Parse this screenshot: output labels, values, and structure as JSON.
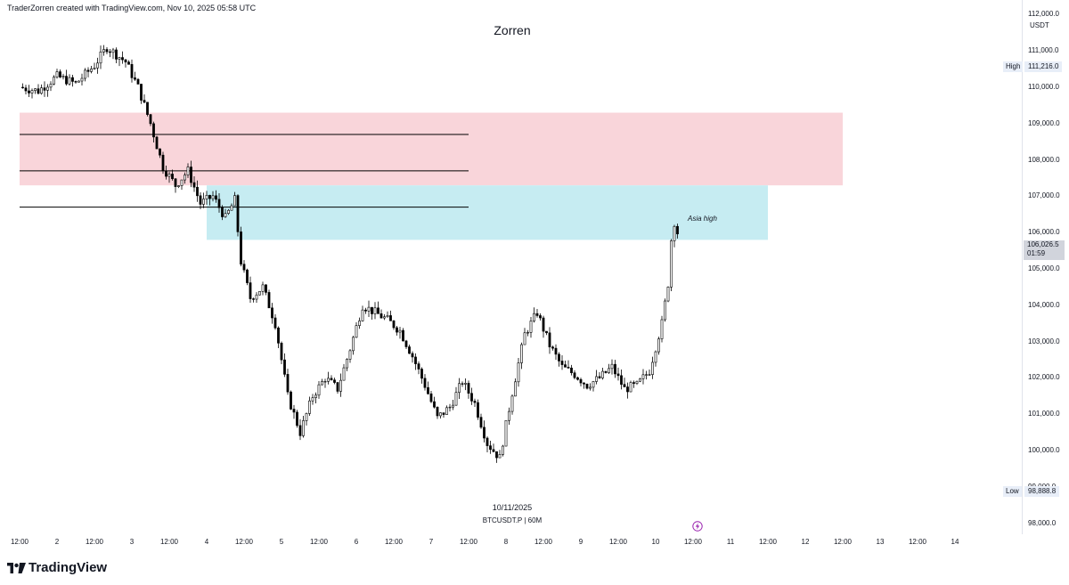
{
  "header": {
    "attribution": "TraderZorren created with TradingView.com, Nov 10, 2025 05:58 UTC",
    "title": "Zorren"
  },
  "footer": {
    "date_label": "10/11/2025",
    "symbol_label": "BTCUSDT.P | 60M",
    "logo_text": "TradingView",
    "logo_icon": "tradingview-logo-icon",
    "flash_icon": "lightning-icon"
  },
  "price_axis": {
    "currency": "USDT",
    "high_label": "High",
    "high_value": "111,216.0",
    "low_label": "Low",
    "low_value": "98,888.8",
    "last_price": "106,026.5",
    "countdown": "01:59"
  },
  "annotation": "Asia high",
  "chart_data": {
    "type": "candlestick",
    "symbol": "BTCUSDT.P",
    "timeframe": "60M",
    "ylim": [
      97700,
      112400
    ],
    "yticks": [
      98000,
      99000,
      100000,
      101000,
      102000,
      103000,
      104000,
      105000,
      106000,
      107000,
      108000,
      109000,
      110000,
      111000,
      112000
    ],
    "ytick_labels": [
      "98,000.0",
      "99,000.0",
      "100,000.0",
      "101,000.0",
      "102,000.0",
      "103,000.0",
      "104,000.0",
      "105,000.0",
      "106,000.0",
      "107,000.0",
      "108,000.0",
      "109,000.0",
      "110,000.0",
      "111,000.0",
      "112,000.0"
    ],
    "xlim": [
      "2025-11-01T12:00",
      "2025-11-14T12:00"
    ],
    "xticks": [
      {
        "t": "2025-11-01T12:00",
        "label": "12:00"
      },
      {
        "t": "2025-11-02T00:00",
        "label": "2"
      },
      {
        "t": "2025-11-02T12:00",
        "label": "12:00"
      },
      {
        "t": "2025-11-03T00:00",
        "label": "3"
      },
      {
        "t": "2025-11-03T12:00",
        "label": "12:00"
      },
      {
        "t": "2025-11-04T00:00",
        "label": "4"
      },
      {
        "t": "2025-11-04T12:00",
        "label": "12:00"
      },
      {
        "t": "2025-11-05T00:00",
        "label": "5"
      },
      {
        "t": "2025-11-05T12:00",
        "label": "12:00"
      },
      {
        "t": "2025-11-06T00:00",
        "label": "6"
      },
      {
        "t": "2025-11-06T12:00",
        "label": "12:00"
      },
      {
        "t": "2025-11-07T00:00",
        "label": "7"
      },
      {
        "t": "2025-11-07T12:00",
        "label": "12:00"
      },
      {
        "t": "2025-11-08T00:00",
        "label": "8"
      },
      {
        "t": "2025-11-08T12:00",
        "label": "12:00"
      },
      {
        "t": "2025-11-09T00:00",
        "label": "9"
      },
      {
        "t": "2025-11-09T12:00",
        "label": "12:00"
      },
      {
        "t": "2025-11-10T00:00",
        "label": "10"
      },
      {
        "t": "2025-11-10T12:00",
        "label": "12:00"
      },
      {
        "t": "2025-11-11T00:00",
        "label": "11"
      },
      {
        "t": "2025-11-11T12:00",
        "label": "12:00"
      },
      {
        "t": "2025-11-12T00:00",
        "label": "12"
      },
      {
        "t": "2025-11-12T12:00",
        "label": "12:00"
      },
      {
        "t": "2025-11-13T00:00",
        "label": "13"
      },
      {
        "t": "2025-11-13T12:00",
        "label": "12:00"
      },
      {
        "t": "2025-11-14T00:00",
        "label": "14"
      }
    ],
    "path": [
      [
        "2025-11-01T12:00",
        110000
      ],
      [
        "2025-11-01T18:00",
        109900
      ],
      [
        "2025-11-02T00:00",
        110300
      ],
      [
        "2025-11-02T06:00",
        110100
      ],
      [
        "2025-11-02T12:00",
        110600
      ],
      [
        "2025-11-02T16:00",
        111100
      ],
      [
        "2025-11-02T22:00",
        110700
      ],
      [
        "2025-11-03T02:00",
        110000
      ],
      [
        "2025-11-03T06:00",
        109000
      ],
      [
        "2025-11-03T10:00",
        107800
      ],
      [
        "2025-11-03T14:00",
        107300
      ],
      [
        "2025-11-03T18:00",
        107700
      ],
      [
        "2025-11-03T22:00",
        106800
      ],
      [
        "2025-11-04T02:00",
        107000
      ],
      [
        "2025-11-04T06:00",
        106400
      ],
      [
        "2025-11-04T09:00",
        106900
      ],
      [
        "2025-11-04T11:00",
        105200
      ],
      [
        "2025-11-04T14:00",
        104200
      ],
      [
        "2025-11-04T18:00",
        104500
      ],
      [
        "2025-11-04T22:00",
        103500
      ],
      [
        "2025-11-05T02:00",
        101500
      ],
      [
        "2025-11-05T06:00",
        100500
      ],
      [
        "2025-11-05T10:00",
        101500
      ],
      [
        "2025-11-05T14:00",
        102000
      ],
      [
        "2025-11-05T18:00",
        101700
      ],
      [
        "2025-11-05T22:00",
        102800
      ],
      [
        "2025-11-06T02:00",
        104000
      ],
      [
        "2025-11-06T06:00",
        103800
      ],
      [
        "2025-11-06T10:00",
        103600
      ],
      [
        "2025-11-06T14:00",
        103300
      ],
      [
        "2025-11-06T18:00",
        102600
      ],
      [
        "2025-11-06T22:00",
        101800
      ],
      [
        "2025-11-07T02:00",
        100900
      ],
      [
        "2025-11-07T06:00",
        101200
      ],
      [
        "2025-11-07T10:00",
        101900
      ],
      [
        "2025-11-07T14:00",
        101300
      ],
      [
        "2025-11-07T18:00",
        100200
      ],
      [
        "2025-11-07T22:00",
        99800
      ],
      [
        "2025-11-08T02:00",
        101600
      ],
      [
        "2025-11-08T06:00",
        103200
      ],
      [
        "2025-11-08T10:00",
        103800
      ],
      [
        "2025-11-08T14:00",
        102900
      ],
      [
        "2025-11-08T18:00",
        102300
      ],
      [
        "2025-11-08T22:00",
        102100
      ],
      [
        "2025-11-09T02:00",
        101800
      ],
      [
        "2025-11-09T06:00",
        102000
      ],
      [
        "2025-11-09T10:00",
        102300
      ],
      [
        "2025-11-09T14:00",
        101700
      ],
      [
        "2025-11-09T18:00",
        101800
      ],
      [
        "2025-11-09T22:00",
        102200
      ],
      [
        "2025-11-10T02:00",
        103500
      ],
      [
        "2025-11-10T04:00",
        104600
      ],
      [
        "2025-11-10T05:00",
        105800
      ],
      [
        "2025-11-10T06:00",
        106300
      ],
      [
        "2025-11-10T07:00",
        106000
      ]
    ],
    "zones": [
      {
        "color": "#f9d5da",
        "from": "2025-11-01T12:00",
        "to": "2025-11-12T12:00",
        "price_low": 107300,
        "price_high": 109300
      },
      {
        "color": "#c6ecf2",
        "from": "2025-11-04T00:00",
        "to": "2025-11-11T12:00",
        "price_low": 105800,
        "price_high": 107300
      }
    ],
    "levels": [
      {
        "price": 108700,
        "from": "2025-11-01T12:00",
        "to": "2025-11-07T12:00"
      },
      {
        "price": 107700,
        "from": "2025-11-01T12:00",
        "to": "2025-11-07T12:00"
      },
      {
        "price": 106700,
        "from": "2025-11-01T12:00",
        "to": "2025-11-07T12:00"
      }
    ],
    "colors": {
      "up": "#ffffff",
      "down": "#000000",
      "wick": "#000000",
      "level": "#000000"
    }
  }
}
